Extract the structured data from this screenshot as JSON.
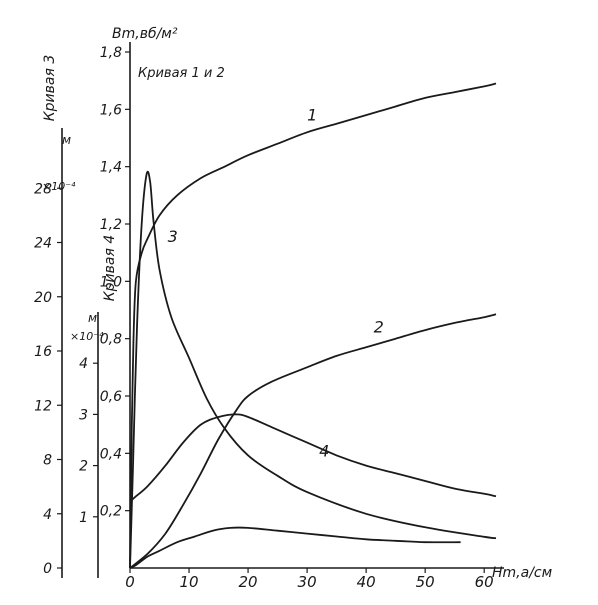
{
  "chart_data": {
    "type": "line",
    "title": "",
    "x_axis": {
      "label": "Hm,a/cм",
      "ticks": [
        "0",
        "10",
        "20",
        "30",
        "40",
        "50",
        "60"
      ],
      "range": [
        0,
        62
      ]
    },
    "y_axis_main": {
      "label": "Bm,вб/м²",
      "note": "Кривая 1 и 2",
      "ticks": [
        "0,2",
        "0,4",
        "0,6",
        "0,8",
        "1,0",
        "1,2",
        "1,4",
        "1,6",
        "1,8"
      ],
      "range": [
        0,
        1.8
      ]
    },
    "y_axis_curve4": {
      "title": "Кривая 4",
      "unit": "м",
      "multiplier": "×10⁻⁴",
      "ticks": [
        "1",
        "2",
        "3",
        "4"
      ],
      "range": [
        0,
        5
      ]
    },
    "y_axis_curve3": {
      "title": "Кривая 3",
      "unit": "м",
      "multiplier": "×10⁻⁴",
      "ticks": [
        "0",
        "4",
        "8",
        "12",
        "16",
        "20",
        "24",
        "28"
      ],
      "range": [
        0,
        32
      ]
    },
    "series": [
      {
        "name": "1",
        "axis": "main",
        "points": [
          [
            0,
            0
          ],
          [
            0.3,
            0.5
          ],
          [
            0.6,
            0.8
          ],
          [
            1,
            1.0
          ],
          [
            2,
            1.1
          ],
          [
            3,
            1.15
          ],
          [
            5,
            1.23
          ],
          [
            8,
            1.3
          ],
          [
            12,
            1.36
          ],
          [
            16,
            1.4
          ],
          [
            20,
            1.44
          ],
          [
            25,
            1.48
          ],
          [
            30,
            1.52
          ],
          [
            35,
            1.55
          ],
          [
            40,
            1.58
          ],
          [
            45,
            1.61
          ],
          [
            50,
            1.64
          ],
          [
            55,
            1.66
          ],
          [
            60,
            1.68
          ],
          [
            62,
            1.69
          ]
        ]
      },
      {
        "name": "2",
        "axis": "main",
        "points": [
          [
            0,
            0
          ],
          [
            3,
            0.05
          ],
          [
            6,
            0.12
          ],
          [
            9,
            0.22
          ],
          [
            12,
            0.33
          ],
          [
            15,
            0.45
          ],
          [
            18,
            0.55
          ],
          [
            20,
            0.6
          ],
          [
            24,
            0.65
          ],
          [
            30,
            0.7
          ],
          [
            35,
            0.74
          ],
          [
            40,
            0.77
          ],
          [
            45,
            0.8
          ],
          [
            50,
            0.83
          ],
          [
            55,
            0.855
          ],
          [
            60,
            0.875
          ],
          [
            62,
            0.885
          ]
        ]
      },
      {
        "name": "3",
        "axis": "curve3",
        "points": [
          [
            0,
            0
          ],
          [
            0.5,
            7.5
          ],
          [
            1.2,
            18
          ],
          [
            2,
            25.5
          ],
          [
            2.8,
            29
          ],
          [
            3.4,
            28.5
          ],
          [
            4,
            25.5
          ],
          [
            5,
            22
          ],
          [
            7,
            18.5
          ],
          [
            10,
            15.5
          ],
          [
            13,
            12.5
          ],
          [
            16,
            10.3
          ],
          [
            20,
            8.3
          ],
          [
            25,
            6.8
          ],
          [
            30,
            5.6
          ],
          [
            40,
            4
          ],
          [
            50,
            3
          ],
          [
            60,
            2.3
          ],
          [
            62,
            2.2
          ]
        ]
      },
      {
        "name": "4",
        "axis": "curve4",
        "points": [
          [
            0,
            1.3
          ],
          [
            1,
            1.4
          ],
          [
            3,
            1.6
          ],
          [
            6,
            2.0
          ],
          [
            9,
            2.45
          ],
          [
            12,
            2.8
          ],
          [
            15,
            2.95
          ],
          [
            18,
            3.0
          ],
          [
            20,
            2.95
          ],
          [
            24,
            2.75
          ],
          [
            30,
            2.45
          ],
          [
            35,
            2.2
          ],
          [
            40,
            2.0
          ],
          [
            45,
            1.85
          ],
          [
            50,
            1.7
          ],
          [
            55,
            1.55
          ],
          [
            60,
            1.45
          ],
          [
            62,
            1.4
          ]
        ]
      },
      {
        "name": "",
        "axis": "main",
        "points": [
          [
            0,
            0
          ],
          [
            1,
            0.01
          ],
          [
            3,
            0.04
          ],
          [
            5,
            0.06
          ],
          [
            8,
            0.09
          ],
          [
            11,
            0.11
          ],
          [
            14,
            0.13
          ],
          [
            17,
            0.14
          ],
          [
            20,
            0.14
          ],
          [
            25,
            0.13
          ],
          [
            30,
            0.12
          ],
          [
            35,
            0.11
          ],
          [
            40,
            0.1
          ],
          [
            45,
            0.095
          ],
          [
            50,
            0.09
          ],
          [
            56,
            0.09
          ]
        ]
      }
    ],
    "curve_labels": [
      {
        "text": "1",
        "series": 0
      },
      {
        "text": "2",
        "series": 1
      },
      {
        "text": "3",
        "series": 2
      },
      {
        "text": "4",
        "series": 3
      }
    ],
    "grid": false
  }
}
